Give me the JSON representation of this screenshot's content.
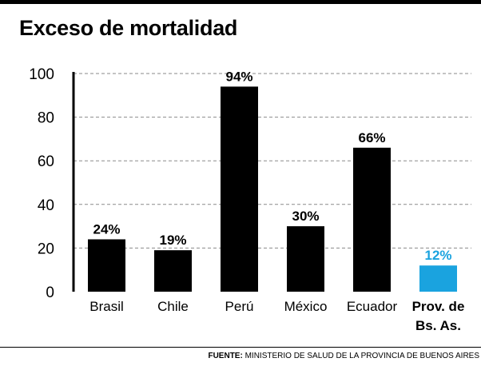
{
  "chart_data": {
    "type": "bar",
    "title": "Exceso de mortalidad",
    "categories": [
      "Brasil",
      "Chile",
      "Perú",
      "México",
      "Ecuador",
      "Prov. de Bs. As."
    ],
    "category_lines": [
      [
        "Brasil"
      ],
      [
        "Chile"
      ],
      [
        "Perú"
      ],
      [
        "México"
      ],
      [
        "Ecuador"
      ],
      [
        "Prov. de",
        "Bs. As."
      ]
    ],
    "values": [
      24,
      19,
      94,
      30,
      66,
      12
    ],
    "value_labels": [
      "24%",
      "19%",
      "94%",
      "30%",
      "66%",
      "12%"
    ],
    "yticks": [
      0,
      20,
      40,
      60,
      80,
      100
    ],
    "ylim": [
      0,
      100
    ],
    "xlabel": "",
    "ylabel": "",
    "grid": "dashed horizontal",
    "highlight_index": 5,
    "colors": {
      "bar": "#000000",
      "highlight": "#1aa3df",
      "grid": "#8a8a8a"
    }
  },
  "source": {
    "label": "FUENTE:",
    "text": " MINISTERIO DE SALUD DE LA PROVINCIA DE BUENOS AIRES"
  }
}
